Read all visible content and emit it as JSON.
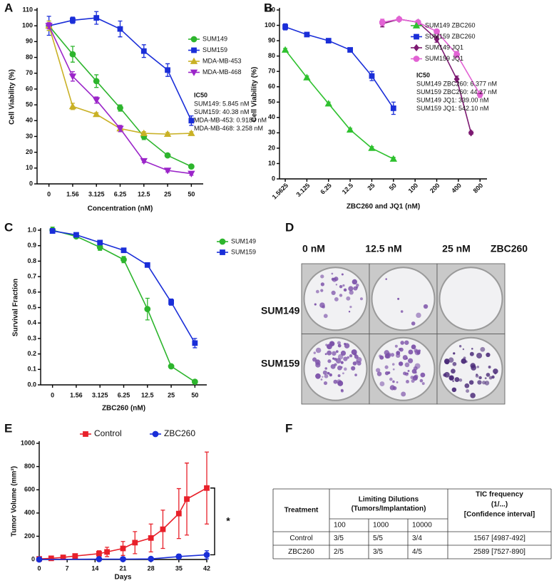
{
  "chart_data": [
    {
      "type": "line",
      "panel_label": "A",
      "xlabel": "Concentration (nM)",
      "ylabel": "Cell Viability (%)",
      "categories": [
        "0",
        "1.56",
        "3.125",
        "6.25",
        "12.5",
        "25",
        "50"
      ],
      "ylim": [
        0,
        110
      ],
      "yticks": [
        0,
        10,
        20,
        30,
        40,
        50,
        60,
        70,
        80,
        90,
        100,
        110
      ],
      "legend": "right",
      "series": [
        {
          "name": "SUM149",
          "color": "#2db52d",
          "marker": "circle",
          "values": [
            100,
            82,
            65,
            48,
            30,
            18,
            11
          ],
          "errors": [
            3,
            5,
            4,
            2,
            2,
            1,
            1
          ]
        },
        {
          "name": "SUM159",
          "color": "#1a2ed8",
          "marker": "square",
          "values": [
            100,
            103.5,
            105,
            98,
            84,
            72,
            40
          ],
          "errors": [
            6,
            2,
            4,
            5,
            4,
            4,
            3
          ]
        },
        {
          "name": "MDA-MB-453",
          "color": "#c9b126",
          "marker": "triangle",
          "values": [
            100,
            49,
            44,
            35,
            32,
            31.5,
            32
          ],
          "errors": [
            3,
            2,
            1,
            1,
            1,
            1,
            1
          ]
        },
        {
          "name": "MDA-MB-468",
          "color": "#9b25c9",
          "marker": "triangle-down",
          "values": [
            100,
            68,
            53,
            35,
            14.5,
            8.5,
            6.5
          ],
          "errors": [
            2,
            3,
            2,
            2,
            1,
            1,
            1
          ]
        }
      ],
      "annotation": {
        "title": "IC50",
        "lines": [
          "SUM149: 5.845 nM",
          "SUM159: 40.38 nM",
          "MDA-MB-453: 0.9189 nM",
          "MDA-MB-468: 3.258 nM"
        ]
      }
    },
    {
      "type": "line",
      "panel_label": "B",
      "xlabel": "ZBC260 and JQ1 (nM)",
      "ylabel": "Cell Viability (%)",
      "xscale": "log",
      "xlim": [
        1.3,
        1000
      ],
      "xticks": [
        1.5625,
        3.125,
        6.25,
        12.5,
        25,
        50,
        100,
        200,
        400,
        800
      ],
      "ylim": [
        0,
        110
      ],
      "yticks": [
        0,
        10,
        20,
        30,
        40,
        50,
        60,
        70,
        80,
        90,
        100,
        110
      ],
      "legend": "right",
      "series": [
        {
          "name": "SUM149 ZBC260",
          "color": "#2fc12f",
          "marker": "triangle",
          "x": [
            1.5625,
            3.125,
            6.25,
            12.5,
            25,
            50
          ],
          "values": [
            84,
            66,
            49,
            32,
            20,
            13
          ],
          "errors": [
            1,
            1,
            1,
            1,
            1,
            1
          ]
        },
        {
          "name": "SUM159 ZBC260",
          "color": "#1a2ed8",
          "marker": "square",
          "x": [
            1.5625,
            3.125,
            6.25,
            12.5,
            25,
            50
          ],
          "values": [
            99,
            94,
            90,
            84,
            67,
            46
          ],
          "errors": [
            2,
            1,
            1,
            1,
            3,
            4
          ]
        },
        {
          "name": "SUM149 JQ1",
          "color": "#7d1a72",
          "marker": "diamond",
          "x": [
            35,
            60,
            110,
            200,
            380,
            600
          ],
          "values": [
            101,
            104,
            102,
            91,
            65,
            30
          ],
          "errors": [
            2,
            1,
            1,
            2,
            2,
            1
          ]
        },
        {
          "name": "SUM159 JQ1",
          "color": "#e262d4",
          "marker": "circle",
          "x": [
            35,
            60,
            110,
            200,
            380,
            800
          ],
          "values": [
            102,
            104,
            102,
            96,
            81,
            55
          ],
          "errors": [
            2,
            1,
            1,
            1,
            2,
            2
          ]
        }
      ],
      "annotation": {
        "title": "IC50",
        "lines": [
          "SUM149 ZBC260: 6.377 nM",
          "SUM159 ZBC260: 44.27 nM",
          "SUM149 JQ1: 339.00 nM",
          "SUM159 JQ1: 542.10 nM"
        ]
      }
    },
    {
      "type": "line",
      "panel_label": "C",
      "xlabel": "ZBC260 (nM)",
      "ylabel": "Survival Fraction",
      "categories": [
        "0",
        "1.56",
        "3.125",
        "6.25",
        "12.5",
        "25",
        "50"
      ],
      "ylim": [
        0,
        1
      ],
      "yticks": [
        {
          "value": 0,
          "label": "0.0"
        },
        0.1,
        0.2,
        0.3,
        0.4,
        0.5,
        0.6,
        0.7,
        0.8,
        0.9,
        {
          "value": 1,
          "label": "1.0"
        }
      ],
      "legend": "upper right",
      "series": [
        {
          "name": "SUM149",
          "color": "#2db52d",
          "marker": "circle",
          "values": [
            1.0,
            0.96,
            0.89,
            0.81,
            0.49,
            0.12,
            0.02
          ],
          "errors": [
            0.02,
            0.01,
            0.02,
            0.02,
            0.07,
            0.01,
            0.01
          ]
        },
        {
          "name": "SUM159",
          "color": "#1a2ed8",
          "marker": "square",
          "values": [
            0.995,
            0.97,
            0.92,
            0.87,
            0.775,
            0.535,
            0.27
          ],
          "errors": [
            0.015,
            0.01,
            0.01,
            0.01,
            0.01,
            0.02,
            0.03
          ]
        }
      ]
    },
    {
      "type": "line",
      "panel_label": "E",
      "xlabel": "Days",
      "ylabel": "Tumor Volume (mm³)",
      "xlim": [
        0,
        42
      ],
      "xticks": [
        0,
        7,
        14,
        21,
        28,
        35,
        42
      ],
      "ylim": [
        0,
        1000
      ],
      "yticks": [
        0,
        200,
        400,
        600,
        800,
        1000
      ],
      "legend": "top",
      "significance": "*",
      "series": [
        {
          "name": "Control",
          "color": "#e8202a",
          "marker": "square",
          "x": [
            0,
            3,
            6,
            9,
            15,
            17,
            21,
            24,
            28,
            31,
            35,
            37,
            42
          ],
          "values": [
            5,
            10,
            18,
            30,
            50,
            65,
            95,
            145,
            185,
            260,
            395,
            520,
            615
          ],
          "errors": [
            3,
            5,
            8,
            10,
            25,
            40,
            60,
            95,
            120,
            165,
            215,
            310,
            310
          ]
        },
        {
          "name": "ZBC260",
          "color": "#1a2ed8",
          "marker": "circle",
          "x": [
            0,
            15,
            21,
            28,
            35,
            42
          ],
          "values": [
            0,
            3,
            3,
            5,
            25,
            40
          ],
          "errors": [
            1,
            2,
            3,
            4,
            20,
            35
          ]
        }
      ]
    }
  ],
  "panel_d": {
    "panel_label": "D",
    "columns": [
      "0 nM",
      "12.5 nM",
      "25 nM"
    ],
    "treatment": "ZBC260",
    "rows": [
      "SUM149",
      "SUM159"
    ]
  },
  "panel_f": {
    "panel_label": "F",
    "header": {
      "treatment": "Treatment",
      "dilutions": [
        "Limiting Dilutions",
        "(Tumors/Implantation)"
      ],
      "tic": [
        "TIC frequency",
        "(1/...)",
        "[Confidence interval]"
      ]
    },
    "doses": [
      "100",
      "1000",
      "10000"
    ],
    "rows": [
      [
        "Control",
        "3/5",
        "5/5",
        "3/4",
        "1567 [4987-492]"
      ],
      [
        "ZBC260",
        "2/5",
        "3/5",
        "4/5",
        "2589 [7527-890]"
      ]
    ]
  }
}
